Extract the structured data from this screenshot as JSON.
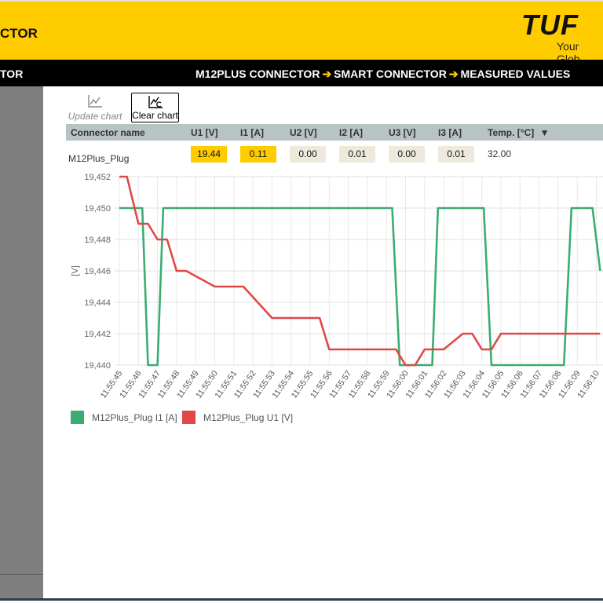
{
  "header": {
    "app_title": "CTOR",
    "logo_text": "TUF",
    "logo_claim": "Your Glob"
  },
  "nav": {
    "left_label": "TOR",
    "breadcrumb": [
      "M12PLUS CONNECTOR",
      "SMART CONNECTOR",
      "MEASURED VALUES"
    ]
  },
  "toolbar": {
    "update_label": "Update chart",
    "clear_label": "Clear chart"
  },
  "table": {
    "headers": [
      "Connector name",
      "U1 [V]",
      "I1 [A]",
      "U2 [V]",
      "I2 [A]",
      "U3 [V]",
      "I3 [A]",
      "Temp. [°C]"
    ],
    "sort_indicator": "▼",
    "row": {
      "name": "M12Plus_Plug",
      "values": [
        "19.44",
        "0.11",
        "0.00",
        "0.01",
        "0.00",
        "0.01"
      ],
      "temp": "32.00"
    }
  },
  "colors": {
    "brand_yellow": "#ffcc00",
    "series_current": "#3aad73",
    "series_voltage": "#e04848"
  },
  "chart_data": {
    "type": "line",
    "ylabel": "[V]",
    "ylim": [
      19.44,
      19.452
    ],
    "y_ticks": [
      "19,452",
      "19,450",
      "19,448",
      "19,446",
      "19,444",
      "19,442",
      "19,440"
    ],
    "categories": [
      "11:55:45",
      "11:55:46",
      "11:55:47",
      "11:55:48",
      "11:55:49",
      "11:55:50",
      "11:55:51",
      "11:55:52",
      "11:55:53",
      "11:55:54",
      "11:55:55",
      "11:55:56",
      "11:55:57",
      "11:55:58",
      "11:55:59",
      "11:56:00",
      "11:56:01",
      "11:56:02",
      "11:56:03",
      "11:56:04",
      "11:56:05",
      "11:56:06",
      "11:56:07",
      "11:56:08",
      "11:56:09",
      "11:56:10"
    ],
    "grid": true,
    "legend_position": "bottom-left",
    "series": [
      {
        "name": "M12Plus_Plug I1 [A]",
        "color": "#3aad73",
        "points": [
          [
            0,
            19.45
          ],
          [
            1,
            19.45
          ],
          [
            1.2,
            19.45
          ],
          [
            1.5,
            19.44
          ],
          [
            2,
            19.44
          ],
          [
            2.3,
            19.45
          ],
          [
            3,
            19.45
          ],
          [
            4,
            19.45
          ],
          [
            5,
            19.45
          ],
          [
            6,
            19.45
          ],
          [
            7,
            19.45
          ],
          [
            8,
            19.45
          ],
          [
            9,
            19.45
          ],
          [
            10,
            19.45
          ],
          [
            11,
            19.45
          ],
          [
            12,
            19.45
          ],
          [
            13,
            19.45
          ],
          [
            14,
            19.45
          ],
          [
            14.3,
            19.45
          ],
          [
            14.7,
            19.44
          ],
          [
            15,
            19.44
          ],
          [
            16,
            19.44
          ],
          [
            16.4,
            19.44
          ],
          [
            16.7,
            19.45
          ],
          [
            17,
            19.45
          ],
          [
            18,
            19.45
          ],
          [
            19,
            19.45
          ],
          [
            19.1,
            19.45
          ],
          [
            19.5,
            19.44
          ],
          [
            20,
            19.44
          ],
          [
            21,
            19.44
          ],
          [
            22,
            19.44
          ],
          [
            23,
            19.44
          ],
          [
            23.3,
            19.44
          ],
          [
            23.7,
            19.45
          ],
          [
            24,
            19.45
          ],
          [
            24.8,
            19.45
          ],
          [
            25.2,
            19.446
          ]
        ]
      },
      {
        "name": "M12Plus_Plug U1 [V]",
        "color": "#e04848",
        "points": [
          [
            0,
            19.452
          ],
          [
            0.4,
            19.452
          ],
          [
            1,
            19.449
          ],
          [
            1.5,
            19.449
          ],
          [
            2,
            19.448
          ],
          [
            2.5,
            19.448
          ],
          [
            3,
            19.446
          ],
          [
            3.5,
            19.446
          ],
          [
            5,
            19.445
          ],
          [
            6,
            19.445
          ],
          [
            6.5,
            19.445
          ],
          [
            8,
            19.443
          ],
          [
            8.5,
            19.443
          ],
          [
            10,
            19.443
          ],
          [
            10.5,
            19.443
          ],
          [
            11,
            19.441
          ],
          [
            12,
            19.441
          ],
          [
            13,
            19.441
          ],
          [
            14,
            19.441
          ],
          [
            14.5,
            19.441
          ],
          [
            15,
            19.44
          ],
          [
            15.5,
            19.44
          ],
          [
            16,
            19.441
          ],
          [
            17,
            19.441
          ],
          [
            18,
            19.442
          ],
          [
            18.5,
            19.442
          ],
          [
            19,
            19.441
          ],
          [
            19.5,
            19.441
          ],
          [
            20,
            19.442
          ],
          [
            21,
            19.442
          ],
          [
            22,
            19.442
          ],
          [
            23,
            19.442
          ],
          [
            24,
            19.442
          ],
          [
            25.2,
            19.442
          ]
        ]
      }
    ]
  }
}
